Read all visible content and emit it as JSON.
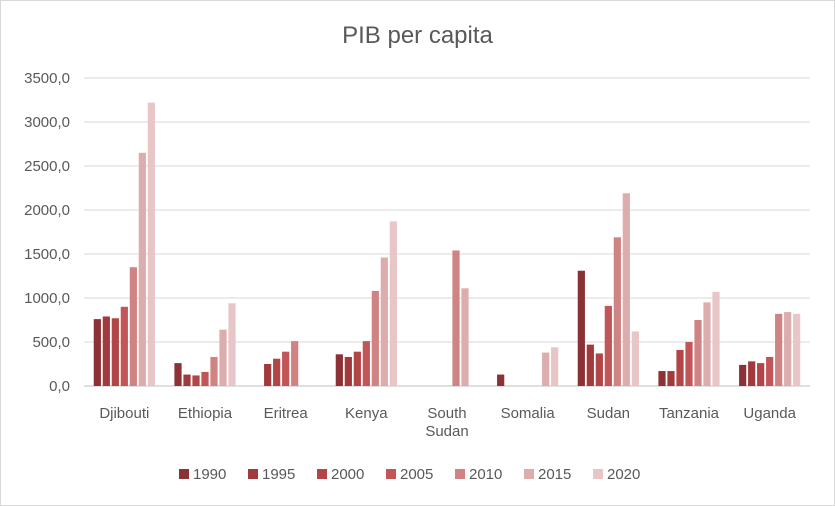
{
  "chart_data": {
    "type": "bar",
    "title": "PIB per capita",
    "xlabel": "",
    "ylabel": "",
    "ylim": [
      0,
      3500
    ],
    "yticks": [
      "0,0",
      "500,0",
      "1000,0",
      "1500,0",
      "2000,0",
      "2500,0",
      "3000,0",
      "3500,0"
    ],
    "grid": true,
    "legend_position": "bottom",
    "categories": [
      [
        "Djibouti"
      ],
      [
        "Ethiopia"
      ],
      [
        "Eritrea"
      ],
      [
        "Kenya"
      ],
      [
        "South",
        "Sudan"
      ],
      [
        "Somalia"
      ],
      [
        "Sudan"
      ],
      [
        "Tanzania"
      ],
      [
        "Uganda"
      ]
    ],
    "series": [
      {
        "name": "1990",
        "color": "#8b3236",
        "values": [
          760,
          260,
          null,
          360,
          null,
          130,
          1310,
          170,
          240
        ]
      },
      {
        "name": "1995",
        "color": "#a13a3d",
        "values": [
          790,
          130,
          250,
          330,
          null,
          null,
          470,
          170,
          280
        ]
      },
      {
        "name": "2000",
        "color": "#b14547",
        "values": [
          770,
          120,
          310,
          390,
          null,
          null,
          370,
          410,
          260
        ]
      },
      {
        "name": "2005",
        "color": "#c25557",
        "values": [
          900,
          160,
          390,
          510,
          null,
          null,
          910,
          500,
          330
        ]
      },
      {
        "name": "2010",
        "color": "#cf8483",
        "values": [
          1350,
          330,
          510,
          1080,
          1540,
          null,
          1690,
          750,
          820
        ]
      },
      {
        "name": "2015",
        "color": "#ddacad",
        "values": [
          2650,
          640,
          null,
          1460,
          1110,
          380,
          2190,
          950,
          840
        ]
      },
      {
        "name": "2020",
        "color": "#e8c5c6",
        "values": [
          3220,
          940,
          null,
          1870,
          null,
          440,
          620,
          1070,
          820
        ]
      }
    ]
  }
}
